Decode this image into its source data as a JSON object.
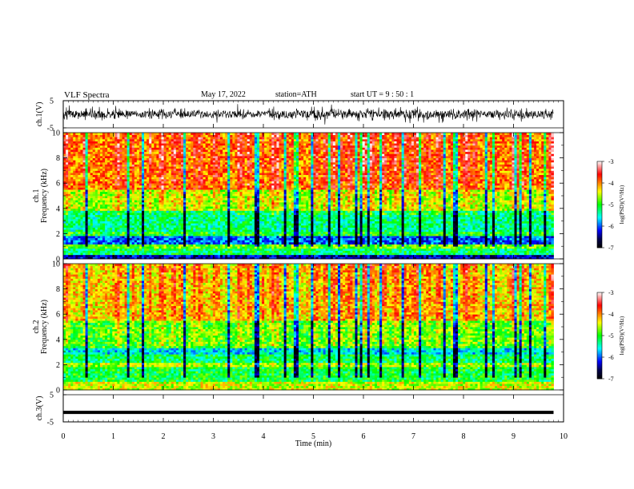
{
  "header": {
    "title": "VLF  Spectra",
    "date": "May 17, 2022",
    "station": "station=ATH",
    "start": "start  UT  =    9  : 50 : 1"
  },
  "chart_data": {
    "type": "heatmap",
    "x_axis": {
      "label": "Time  (min)",
      "range": [
        0,
        10
      ],
      "ticks": [
        "0",
        "1",
        "2",
        "3",
        "4",
        "5",
        "6",
        "7",
        "8",
        "9",
        "10"
      ]
    },
    "panels": [
      {
        "id": "ch1_waveform",
        "type": "line",
        "ylabel": "ch.1(V)",
        "ylim": [
          -5,
          5
        ],
        "yticks": [
          "5",
          "-5"
        ],
        "data_end_min": 9.8
      },
      {
        "id": "ch1_spectrogram",
        "type": "heatmap",
        "ylabel_top": "ch.1",
        "ylabel": "Frequency  (kHz)",
        "ylim": [
          0,
          10
        ],
        "yticks": [
          "10",
          "8",
          "6",
          "4",
          "2",
          "0"
        ],
        "data_end_min": 9.8,
        "bands": [
          {
            "from_khz": 0.0,
            "to_khz": 0.4,
            "log_psd": -6.4
          },
          {
            "from_khz": 0.4,
            "to_khz": 0.9,
            "log_psd": -5.2
          },
          {
            "from_khz": 0.9,
            "to_khz": 1.1,
            "log_psd": -4.8
          },
          {
            "from_khz": 1.1,
            "to_khz": 1.9,
            "log_psd": -6.0
          },
          {
            "from_khz": 1.9,
            "to_khz": 2.1,
            "log_psd": -5.0
          },
          {
            "from_khz": 2.1,
            "to_khz": 3.8,
            "log_psd": -5.3
          },
          {
            "from_khz": 3.8,
            "to_khz": 5.5,
            "log_psd": -4.6
          },
          {
            "from_khz": 5.5,
            "to_khz": 10.0,
            "log_psd": -4.0
          }
        ]
      },
      {
        "id": "ch2_spectrogram",
        "type": "heatmap",
        "ylabel_top": "ch.2",
        "ylabel": "Frequency  (kHz)",
        "ylim": [
          0,
          10
        ],
        "yticks": [
          "10",
          "8",
          "6",
          "4",
          "2",
          "0"
        ],
        "data_end_min": 9.8,
        "bands": [
          {
            "from_khz": 0.0,
            "to_khz": 0.6,
            "log_psd": -4.5
          },
          {
            "from_khz": 0.6,
            "to_khz": 1.8,
            "log_psd": -5.1
          },
          {
            "from_khz": 1.8,
            "to_khz": 2.1,
            "log_psd": -4.6
          },
          {
            "from_khz": 2.1,
            "to_khz": 2.9,
            "log_psd": -5.2
          },
          {
            "from_khz": 2.9,
            "to_khz": 3.4,
            "log_psd": -5.6
          },
          {
            "from_khz": 3.4,
            "to_khz": 5.5,
            "log_psd": -4.9
          },
          {
            "from_khz": 5.5,
            "to_khz": 10.0,
            "log_psd": -4.3
          }
        ]
      },
      {
        "id": "ch3_waveform",
        "type": "line",
        "ylabel": "ch.3(V)",
        "ylim": [
          -5,
          5
        ],
        "yticks": [
          "5",
          "-5"
        ],
        "level_v": -1.5,
        "data_end_min": 9.8
      }
    ],
    "colorbar": {
      "label": "log(PSD)(V²/Hz)",
      "range": [
        -7,
        -3
      ],
      "ticks": [
        "-3",
        "-4",
        "-5",
        "-6",
        "-7"
      ],
      "colormap": [
        "#ffffff",
        "#ff0000",
        "#ff8000",
        "#ffff00",
        "#00ff00",
        "#00ffff",
        "#0000ff",
        "#00004a",
        "#000000"
      ]
    }
  }
}
